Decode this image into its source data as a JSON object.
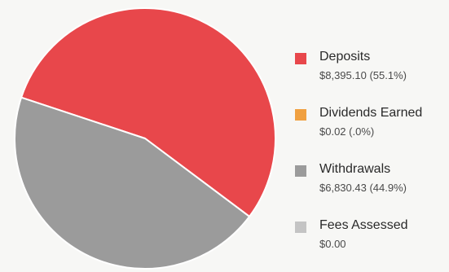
{
  "chart_data": {
    "type": "pie",
    "title": "",
    "legend_position": "right",
    "slices": [
      {
        "label": "Deposits",
        "value": 8395.1,
        "value_text": "$8,395.10 (55.1%)",
        "percent": 55.1,
        "color": "#e8474b"
      },
      {
        "label": "Dividends Earned",
        "value": 0.02,
        "value_text": "$0.02 (.0%)",
        "percent": 0.0,
        "color": "#f0a040"
      },
      {
        "label": "Withdrawals",
        "value": 6830.43,
        "value_text": "$6,830.43 (44.9%)",
        "percent": 44.9,
        "color": "#9b9b9b"
      },
      {
        "label": "Fees Assessed",
        "value": 0.0,
        "value_text": "$0.00",
        "percent": 0.0,
        "color": "#c4c4c4"
      }
    ]
  }
}
